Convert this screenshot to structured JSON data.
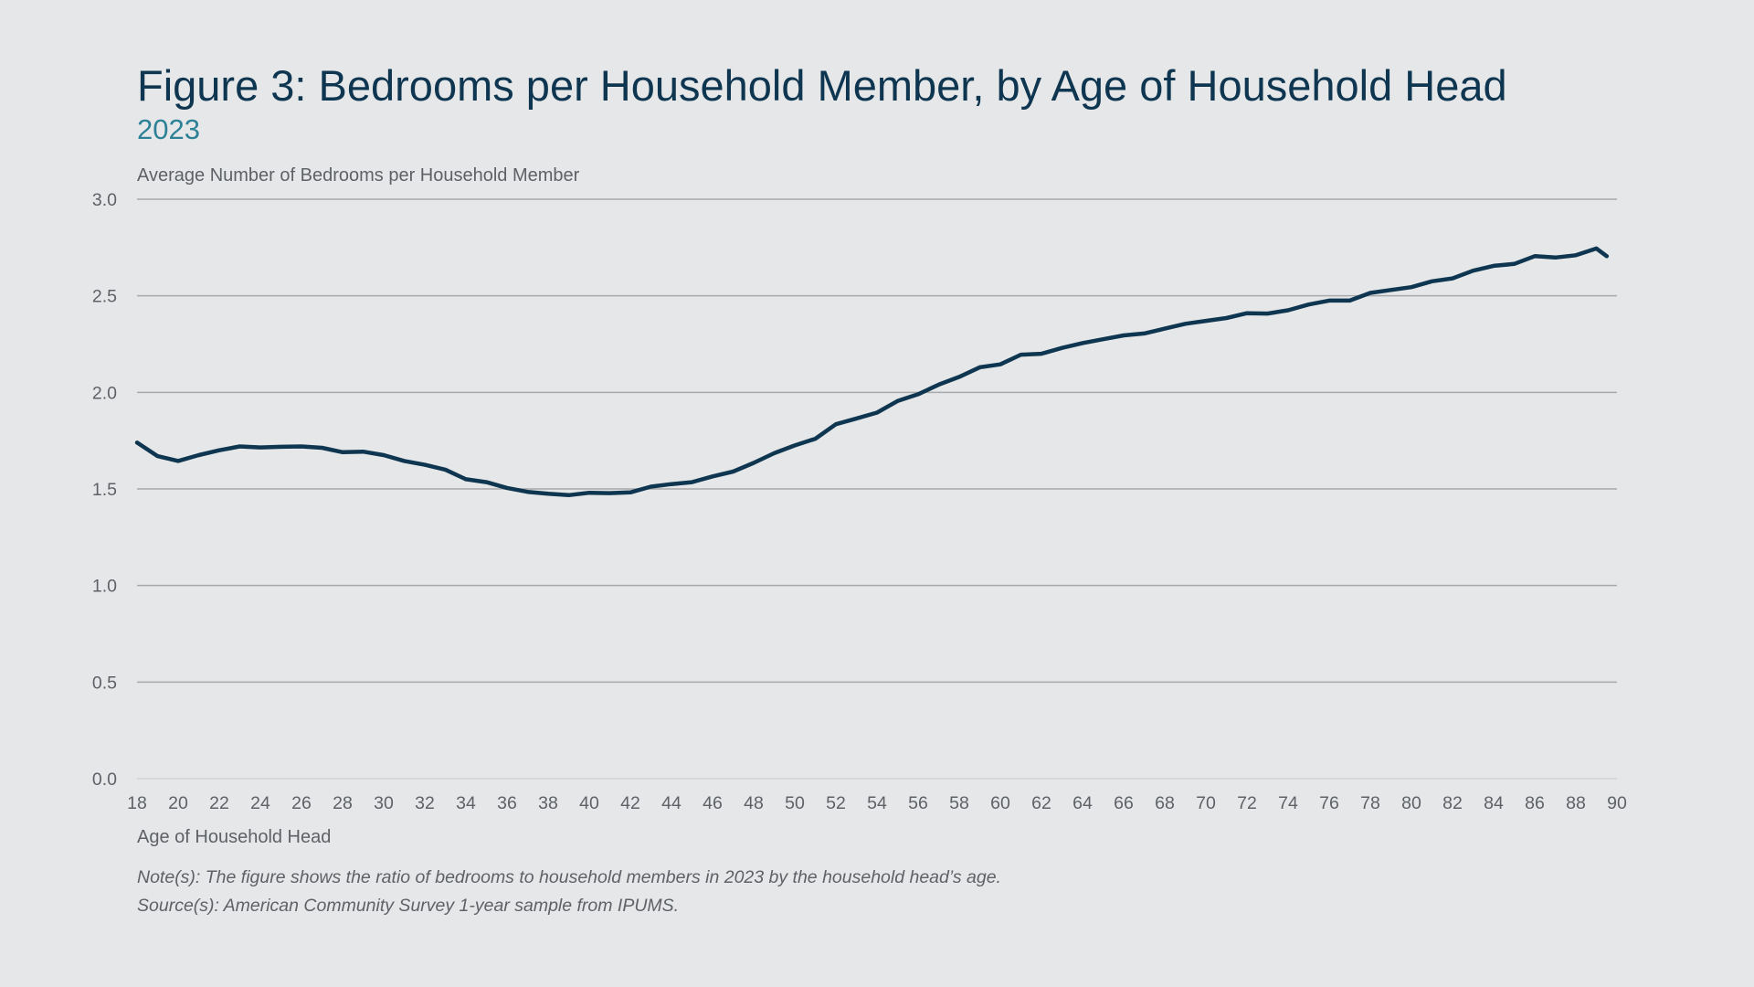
{
  "header": {
    "title": "Figure 3: Bedrooms per Household Member, by Age of Household Head",
    "subtitle": "2023"
  },
  "footer": {
    "note": "Note(s): The figure shows the ratio of bedrooms to household members in 2023 by the household head’s age.",
    "source": "Source(s): American Community Survey 1-year sample from IPUMS."
  },
  "colors": {
    "background": "#e6e7e9",
    "line": "#0f3650",
    "title": "#0f3650",
    "subtitle": "#2c8196",
    "grid": "#a8a9ab",
    "text": "#5e6166"
  },
  "chart_data": {
    "type": "line",
    "title": "Figure 3: Bedrooms per Household Member, by Age of Household Head",
    "subtitle": "2023",
    "xlabel": "Age of Household Head",
    "ylabel": "Average Number of Bedrooms per Household Member",
    "xlim": [
      18,
      90
    ],
    "ylim": [
      0,
      3
    ],
    "grid": true,
    "legend": "none",
    "x_ticks": [
      "18",
      "20",
      "22",
      "24",
      "26",
      "28",
      "30",
      "32",
      "34",
      "36",
      "38",
      "40",
      "42",
      "44",
      "46",
      "48",
      "50",
      "52",
      "54",
      "56",
      "58",
      "60",
      "62",
      "64",
      "66",
      "68",
      "70",
      "72",
      "74",
      "76",
      "78",
      "80",
      "82",
      "84",
      "86",
      "88",
      "90"
    ],
    "y_ticks": [
      "0.0",
      "0.5",
      "1.0",
      "1.5",
      "2.0",
      "2.5",
      "3.0"
    ],
    "series": [
      {
        "x": [
          18,
          19,
          20,
          21,
          22,
          23,
          24,
          25,
          26,
          27,
          28,
          29,
          30,
          31,
          32,
          33,
          34,
          35,
          36,
          37,
          38,
          39,
          40,
          41,
          42,
          43,
          44,
          45,
          46,
          47,
          48,
          49,
          50,
          51,
          52,
          53,
          54,
          55,
          56,
          57,
          58,
          59,
          60,
          61,
          62,
          63,
          64,
          65,
          66,
          67,
          68,
          69,
          70,
          71,
          72,
          73,
          74,
          75,
          76,
          77,
          78,
          79,
          80,
          81,
          82,
          83,
          84,
          85,
          86,
          87,
          88,
          89
        ],
        "values": [
          1.74,
          1.67,
          1.645,
          1.675,
          1.7,
          1.72,
          1.715,
          1.718,
          1.72,
          1.713,
          1.69,
          1.693,
          1.675,
          1.645,
          1.625,
          1.6,
          1.55,
          1.535,
          1.505,
          1.485,
          1.475,
          1.468,
          1.48,
          1.478,
          1.482,
          1.512,
          1.525,
          1.535,
          1.565,
          1.59,
          1.635,
          1.685,
          1.725,
          1.76,
          1.835,
          1.865,
          1.895,
          1.955,
          1.99,
          2.04,
          2.08,
          2.13,
          2.145,
          2.195,
          2.2,
          2.23,
          2.255,
          2.275,
          2.295,
          2.305,
          2.33,
          2.355,
          2.37,
          2.385,
          2.41,
          2.408,
          2.425,
          2.455,
          2.475,
          2.475,
          2.515,
          2.53,
          2.545,
          2.575,
          2.59,
          2.63,
          2.655,
          2.665,
          2.705,
          2.698,
          2.71,
          2.745
        ]
      }
    ],
    "x_last_point_extra": [
      89.5,
      2.705
    ]
  }
}
